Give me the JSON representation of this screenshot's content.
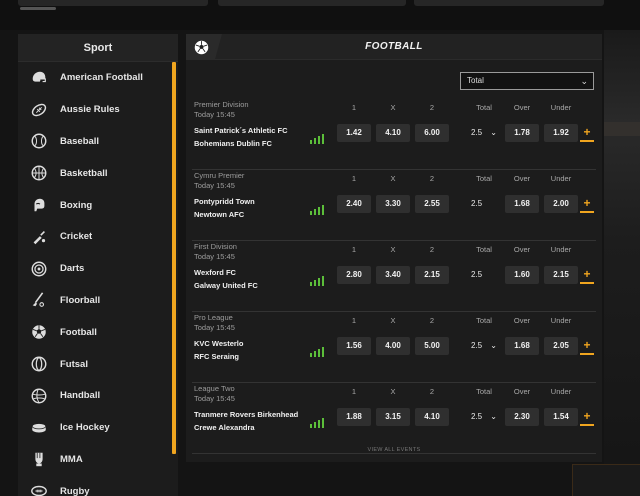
{
  "sidebar": {
    "header": "Sport",
    "items": [
      {
        "label": "American Football",
        "icon": "american-football-helmet-icon"
      },
      {
        "label": "Aussie Rules",
        "icon": "aussie-rules-ball-icon"
      },
      {
        "label": "Baseball",
        "icon": "baseball-icon"
      },
      {
        "label": "Basketball",
        "icon": "basketball-icon"
      },
      {
        "label": "Boxing",
        "icon": "boxing-glove-icon"
      },
      {
        "label": "Cricket",
        "icon": "cricket-bat-icon"
      },
      {
        "label": "Darts",
        "icon": "dartboard-icon"
      },
      {
        "label": "Floorball",
        "icon": "floorball-stick-icon"
      },
      {
        "label": "Football",
        "icon": "football-icon"
      },
      {
        "label": "Futsal",
        "icon": "futsal-ball-icon"
      },
      {
        "label": "Handball",
        "icon": "handball-icon"
      },
      {
        "label": "Ice Hockey",
        "icon": "ice-hockey-puck-icon"
      },
      {
        "label": "MMA",
        "icon": "mma-glove-icon"
      },
      {
        "label": "Rugby",
        "icon": "rugby-icon"
      }
    ]
  },
  "main": {
    "title": "FOOTBALL",
    "market_select": "Total",
    "columns": {
      "c1": "1",
      "cx": "X",
      "c2": "2",
      "total": "Total",
      "over": "Over",
      "under": "Under"
    },
    "events": [
      {
        "league": "Premier Division",
        "time": "Today 15:45",
        "home": "Saint Patrick´s Athletic FC",
        "away": "Bohemians Dublin FC",
        "o1": "1.42",
        "ox": "4.10",
        "o2": "6.00",
        "line": "2.5",
        "has_dropdown": true,
        "over": "1.78",
        "under": "1.92"
      },
      {
        "league": "Cymru Premier",
        "time": "Today 15:45",
        "home": "Pontypridd Town",
        "away": "Newtown AFC",
        "o1": "2.40",
        "ox": "3.30",
        "o2": "2.55",
        "line": "2.5",
        "has_dropdown": false,
        "over": "1.68",
        "under": "2.00"
      },
      {
        "league": "First Division",
        "time": "Today 15:45",
        "home": "Wexford FC",
        "away": "Galway United FC",
        "o1": "2.80",
        "ox": "3.40",
        "o2": "2.15",
        "line": "2.5",
        "has_dropdown": false,
        "over": "1.60",
        "under": "2.15"
      },
      {
        "league": "Pro League",
        "time": "Today 15:45",
        "home": "KVC Westerlo",
        "away": "RFC Seraing",
        "o1": "1.56",
        "ox": "4.00",
        "o2": "5.00",
        "line": "2.5",
        "has_dropdown": true,
        "over": "1.68",
        "under": "2.05"
      },
      {
        "league": "League Two",
        "time": "Today 15:45",
        "home": "Tranmere Rovers Birkenhead",
        "away": "Crewe Alexandra",
        "o1": "1.88",
        "ox": "3.15",
        "o2": "4.10",
        "line": "2.5",
        "has_dropdown": true,
        "over": "2.30",
        "under": "1.54"
      }
    ],
    "view_all": "VIEW ALL EVENTS"
  },
  "colors": {
    "accent": "#f0a51f",
    "stats": "#5cbf3a",
    "odds_bg": "#2f2f2f"
  }
}
